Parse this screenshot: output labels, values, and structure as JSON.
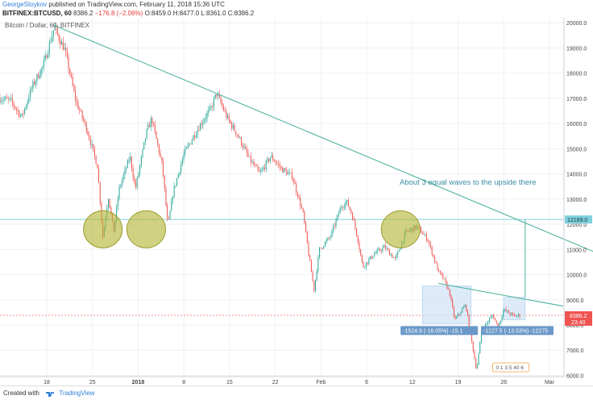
{
  "header": {
    "author": "GeorgeStoykov",
    "published": " published on TradingView.com, February 11, 2018 15:36 UTC",
    "symbol": "BITFINEX:BTCUSD, 60",
    "last": "8386.2",
    "change": "−176.8 (−2.06%)",
    "ohlc": "O:8459.0 H:8477.0 L:8361.0 C:8386.2"
  },
  "chart_data": {
    "type": "candlestick",
    "title": "Bitcoin / Dollar, 60, BITFINEX",
    "x_ticks": [
      "18",
      "25",
      "2018",
      "8",
      "15",
      "22",
      "Feb",
      "6",
      "12",
      "19",
      "26",
      "Mar"
    ],
    "y_ticks": [
      "20000.0",
      "19000.0",
      "18000.0",
      "17000.0",
      "16000.0",
      "15000.0",
      "14000.0",
      "13000.0",
      "12000.0",
      "11000.0",
      "10000.0",
      "9000.0",
      "8000.0",
      "7000.0",
      "6000.0"
    ],
    "ylim": [
      5950,
      20200
    ],
    "price_path": [
      [
        0,
        17000
      ],
      [
        2,
        16900
      ],
      [
        4,
        16250
      ],
      [
        6,
        17500
      ],
      [
        8,
        18300
      ],
      [
        10,
        19800
      ],
      [
        12,
        18900
      ],
      [
        14,
        16900
      ],
      [
        16,
        15800
      ],
      [
        18,
        14300
      ],
      [
        19,
        11500
      ],
      [
        20,
        13100
      ],
      [
        21,
        11700
      ],
      [
        22,
        13400
      ],
      [
        24,
        14700
      ],
      [
        25,
        13400
      ],
      [
        27,
        15600
      ],
      [
        28,
        16200
      ],
      [
        30,
        14300
      ],
      [
        31,
        11900
      ],
      [
        32,
        13300
      ],
      [
        34,
        14800
      ],
      [
        36,
        15600
      ],
      [
        38,
        16300
      ],
      [
        39,
        16600
      ],
      [
        40,
        17200
      ],
      [
        42,
        16200
      ],
      [
        44,
        15500
      ],
      [
        46,
        14600
      ],
      [
        48,
        14000
      ],
      [
        50,
        14700
      ],
      [
        52,
        14200
      ],
      [
        54,
        13900
      ],
      [
        56,
        12400
      ],
      [
        57,
        10800
      ],
      [
        58,
        9400
      ],
      [
        59,
        11000
      ],
      [
        61,
        11500
      ],
      [
        63,
        12700
      ],
      [
        64,
        12900
      ],
      [
        65,
        12400
      ],
      [
        66,
        11500
      ],
      [
        67,
        10300
      ],
      [
        69,
        10800
      ],
      [
        71,
        11100
      ],
      [
        73,
        10600
      ],
      [
        75,
        11700
      ],
      [
        77,
        11900
      ],
      [
        79,
        11400
      ],
      [
        81,
        10100
      ],
      [
        82,
        9800
      ],
      [
        83,
        9300
      ],
      [
        84,
        8200
      ],
      [
        85,
        8500
      ],
      [
        86,
        8800
      ],
      [
        87,
        7500
      ],
      [
        88,
        6200
      ],
      [
        89,
        7800
      ],
      [
        91,
        8400
      ],
      [
        92,
        7900
      ],
      [
        93,
        8600
      ],
      [
        95,
        8350
      ],
      [
        96,
        8400
      ]
    ],
    "candle_count": 380,
    "last_price": "8386.2",
    "last_price_time": "23:40",
    "h_level_label": "12189.0",
    "h_level": 12189,
    "ref_level": 8386.2,
    "trendline_major": [
      [
        10,
        19900
      ],
      [
        112,
        10700
      ]
    ],
    "trendline_minor": [
      [
        81,
        9650
      ],
      [
        104,
        8750
      ]
    ],
    "upside_arrow": {
      "x": 97,
      "from": 9100,
      "to": 12189
    },
    "circles": [
      [
        19,
        11800
      ],
      [
        27,
        11800
      ],
      [
        74,
        11800
      ]
    ],
    "range_boxes": [
      [
        78,
        8050,
        87,
        9550
      ],
      [
        93,
        8200,
        97,
        9100
      ]
    ],
    "annotation": "About 3 equal waves to the upside there",
    "measure_labels": [
      "-1524.9 (-16.05%) -15.1",
      "-1227.5 (-13.53%) -12275"
    ],
    "small_badge": "0 1 3 5 40 6"
  },
  "footer": {
    "created": "Created with",
    "brand": "TradingView"
  }
}
